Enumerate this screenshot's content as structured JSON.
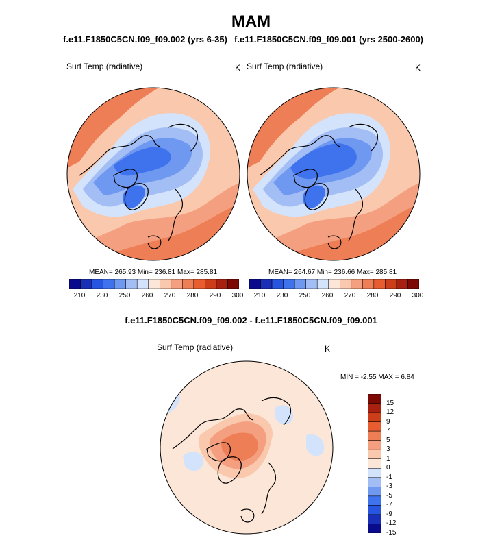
{
  "figure": {
    "title": "MAM",
    "left_run_title": "f.e11.F1850C5CN.f09_f09.002 (yrs 6-35)",
    "right_run_title": "f.e11.F1850C5CN.f09_f09.001 (yrs 2500-2600)",
    "diff_title": "f.e11.F1850C5CN.f09_f09.002 - f.e11.F1850C5CN.f09_f09.001"
  },
  "panels": {
    "left": {
      "variable": "Surf Temp (radiative)",
      "units": "K",
      "stats": "MEAN= 265.93  Min= 236.81  Max= 285.81"
    },
    "right": {
      "variable": "Surf Temp (radiative)",
      "units": "K",
      "stats": "MEAN= 264.67  Min= 236.66  Max= 285.81"
    },
    "diff": {
      "variable": "Surf Temp (radiative)",
      "units": "K",
      "stats": "MIN =  -2.55 MAX =   6.84"
    }
  },
  "chart_data": [
    {
      "type": "heatmap",
      "projection": "north-polar-stereographic",
      "title": "Surf Temp (radiative)",
      "units": "K",
      "summary": {
        "mean": 265.93,
        "min": 236.81,
        "max": 285.81
      },
      "colorbar_levels": [
        210,
        220,
        230,
        240,
        250,
        255,
        260,
        265,
        270,
        275,
        280,
        285,
        290,
        295,
        300
      ],
      "colorbar_ticks": [
        "210",
        "230",
        "250",
        "260",
        "270",
        "280",
        "290",
        "300"
      ]
    },
    {
      "type": "heatmap",
      "projection": "north-polar-stereographic",
      "title": "Surf Temp (radiative)",
      "units": "K",
      "summary": {
        "mean": 264.67,
        "min": 236.66,
        "max": 285.81
      },
      "colorbar_levels": [
        210,
        220,
        230,
        240,
        250,
        255,
        260,
        265,
        270,
        275,
        280,
        285,
        290,
        295,
        300
      ],
      "colorbar_ticks": [
        "210",
        "230",
        "250",
        "260",
        "270",
        "280",
        "290",
        "300"
      ]
    },
    {
      "type": "heatmap",
      "projection": "north-polar-stereographic",
      "title": "Surf Temp (radiative)",
      "units": "K",
      "summary": {
        "min": -2.55,
        "max": 6.84
      },
      "colorbar_ticks": [
        "15",
        "12",
        "9",
        "7",
        "5",
        "3",
        "1",
        "0",
        "-1",
        "-3",
        "-5",
        "-7",
        "-9",
        "-12",
        "-15"
      ]
    }
  ],
  "colors": {
    "abs_scale": [
      "#0a0a8c",
      "#1a2fb8",
      "#2755e0",
      "#3f73ee",
      "#6f98f0",
      "#a3bdf5",
      "#d3e3fb",
      "#fbe6d8",
      "#f9c8ad",
      "#f4a080",
      "#ee7e55",
      "#e85d30",
      "#cc3d19",
      "#a82010",
      "#7d0905"
    ],
    "diff_scale": [
      "#7d0905",
      "#a82010",
      "#cc3d19",
      "#e85d30",
      "#ee7e55",
      "#f4a080",
      "#f9c8ad",
      "#fbe6d8",
      "#d3e3fb",
      "#a3bdf5",
      "#6f98f0",
      "#3f73ee",
      "#2755e0",
      "#1a2fb8",
      "#0a0a8c"
    ]
  }
}
